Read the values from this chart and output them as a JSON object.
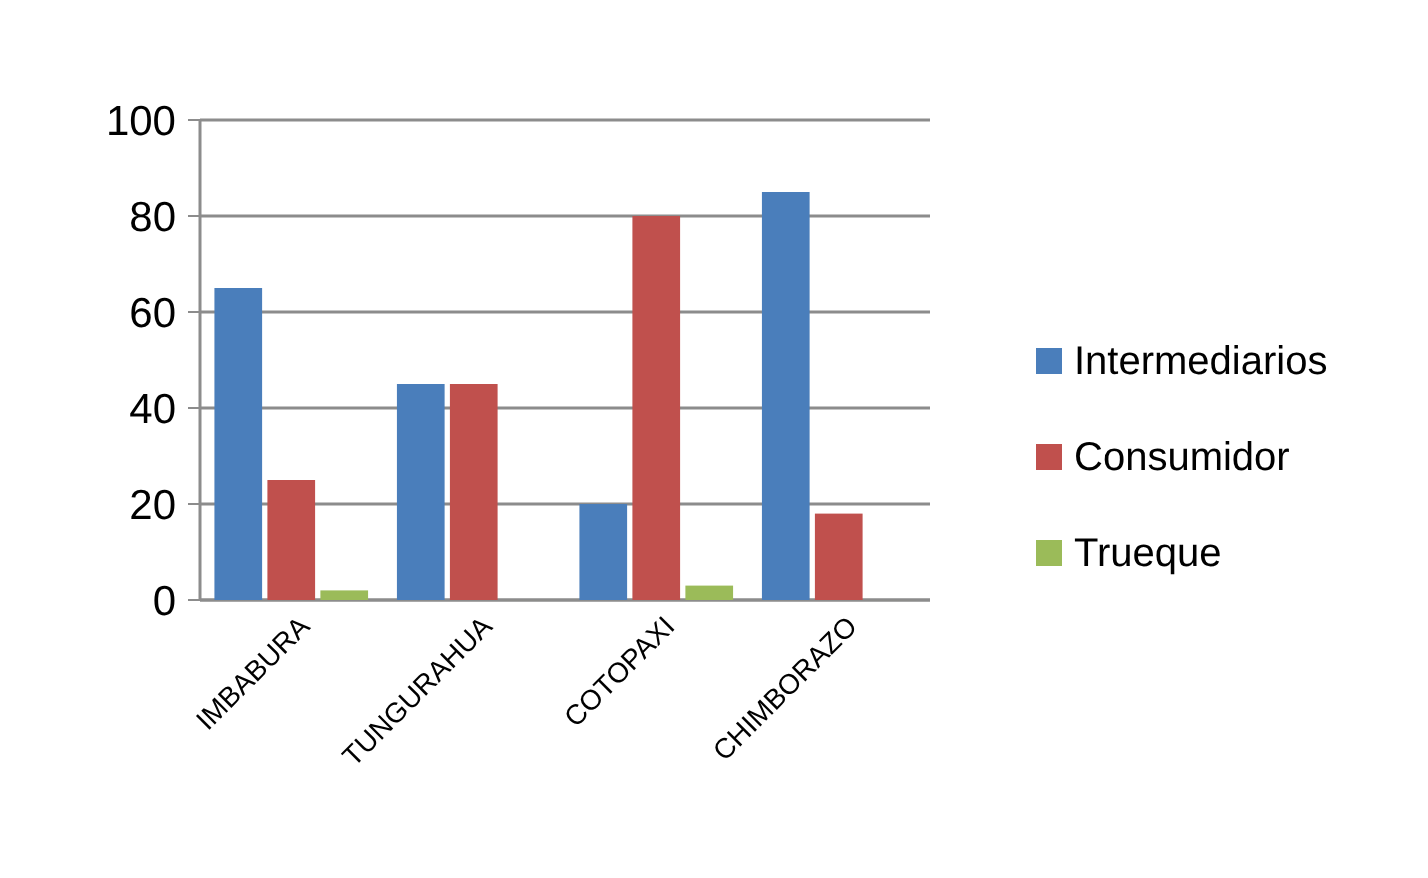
{
  "chart_data": {
    "type": "bar",
    "categories": [
      "IMBABURA",
      "TUNGURAHUA",
      "COTOPAXI",
      "CHIMBORAZO"
    ],
    "series": [
      {
        "name": "Intermediarios",
        "color": "#4a7ebb",
        "values": [
          65,
          45,
          20,
          85
        ]
      },
      {
        "name": "Consumidor",
        "color": "#c0504d",
        "values": [
          25,
          45,
          80,
          18
        ]
      },
      {
        "name": "Trueque",
        "color": "#9bbb59",
        "values": [
          2,
          0,
          3,
          0
        ]
      }
    ],
    "ylim": [
      0,
      100
    ],
    "yticks": [
      0,
      20,
      40,
      60,
      80,
      100
    ],
    "grid": "y",
    "legend": "right"
  }
}
